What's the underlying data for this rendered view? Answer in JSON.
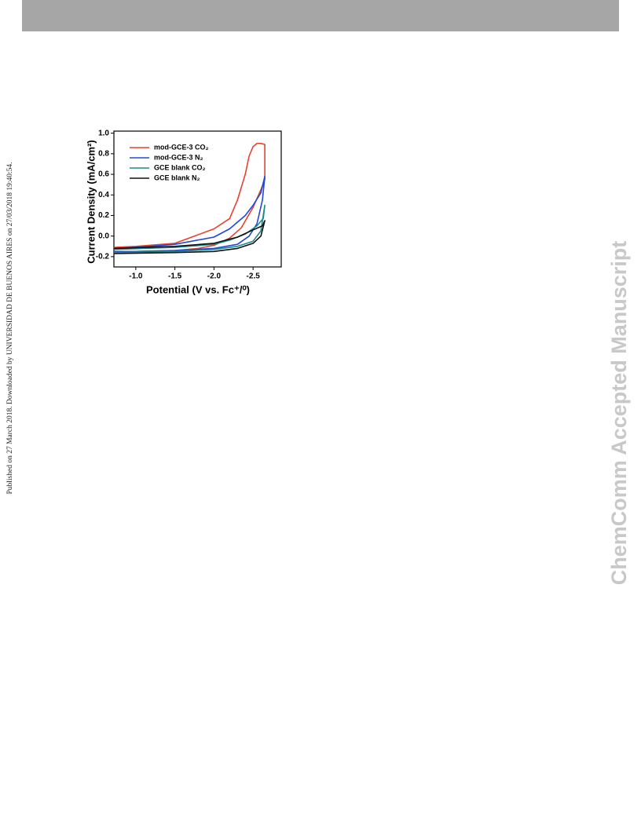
{
  "page": {
    "side_note": "Published on 27 March 2018. Downloaded by UNIVERSIDAD DE BUENOS AIRES on 27/03/2018 19:40:54.",
    "watermark": "ChemComm Accepted Manuscript"
  },
  "chart_data": {
    "type": "line",
    "xlabel": "Potential (V vs. Fc⁺/⁰)",
    "ylabel": "Current Density (mA/cm²)",
    "xlim": [
      -0.72,
      -2.86
    ],
    "ylim": [
      -0.3,
      1.02
    ],
    "xticks": [
      {
        "value": -1,
        "label": "-1.0"
      },
      -1.5,
      {
        "value": -2,
        "label": "-2.0"
      },
      -2.5
    ],
    "yticks": [
      -0.2,
      {
        "value": 0,
        "label": "0.0"
      },
      0.2,
      0.4,
      0.6,
      0.8,
      {
        "value": 1,
        "label": "1.0"
      }
    ],
    "grid": false,
    "legend": "upper left",
    "series": [
      {
        "name": "mod-GCE-3 CO₂",
        "color": "#e8412c",
        "x": [
          -0.72,
          -1.0,
          -1.5,
          -1.8,
          -2.0,
          -2.2,
          -2.35,
          -2.5,
          -2.6,
          -2.65,
          -2.65,
          -2.6,
          -2.55,
          -2.5,
          -2.45,
          -2.4,
          -2.3,
          -2.2,
          -2.0,
          -1.75,
          -1.5,
          -1.0,
          -0.72
        ],
        "values": [
          -0.15,
          -0.15,
          -0.14,
          -0.12,
          -0.09,
          -0.02,
          0.08,
          0.28,
          0.45,
          0.55,
          0.89,
          0.9,
          0.9,
          0.87,
          0.78,
          0.6,
          0.35,
          0.17,
          0.07,
          0.0,
          -0.07,
          -0.1,
          -0.11
        ]
      },
      {
        "name": "mod-GCE-3 N₂",
        "color": "#2148d8",
        "x": [
          -0.72,
          -1.0,
          -1.5,
          -2.0,
          -2.3,
          -2.45,
          -2.55,
          -2.62,
          -2.65,
          -2.6,
          -2.5,
          -2.4,
          -2.2,
          -2.0,
          -1.5,
          -1.0,
          -0.72
        ],
        "values": [
          -0.15,
          -0.15,
          -0.14,
          -0.12,
          -0.08,
          0.0,
          0.12,
          0.35,
          0.58,
          0.42,
          0.3,
          0.2,
          0.07,
          -0.01,
          -0.08,
          -0.11,
          -0.12
        ]
      },
      {
        "name": "GCE blank CO₂",
        "color": "#1a8a8a",
        "x": [
          -0.72,
          -1.5,
          -2.0,
          -2.3,
          -2.5,
          -2.6,
          -2.65,
          -2.63,
          -2.55,
          -2.4,
          -2.2,
          -2.0,
          -1.5,
          -0.72
        ],
        "values": [
          -0.16,
          -0.15,
          -0.13,
          -0.1,
          -0.05,
          0.05,
          0.3,
          0.17,
          0.1,
          0.02,
          -0.04,
          -0.08,
          -0.11,
          -0.13
        ]
      },
      {
        "name": "GCE blank N₂",
        "color": "#111111",
        "x": [
          -0.72,
          -1.5,
          -2.0,
          -2.3,
          -2.5,
          -2.6,
          -2.65,
          -2.62,
          -2.5,
          -2.3,
          -2.0,
          -1.5,
          -0.72
        ],
        "values": [
          -0.17,
          -0.16,
          -0.15,
          -0.12,
          -0.07,
          0.0,
          0.15,
          0.1,
          0.06,
          -0.01,
          -0.07,
          -0.1,
          -0.12
        ]
      }
    ]
  }
}
